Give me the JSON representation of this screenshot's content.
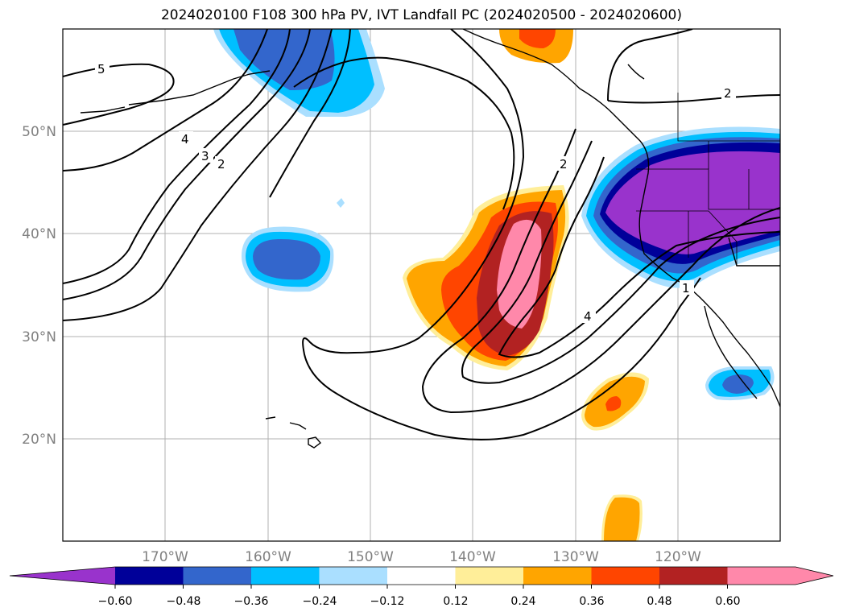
{
  "title": "2024020100 F108 300 hPa PV, IVT Landfall PC (2024020500 - 2024020600)",
  "map": {
    "lon_labels": [
      "170°W",
      "160°W",
      "150°W",
      "140°W",
      "130°W",
      "120°W"
    ],
    "lat_labels": [
      "50°N",
      "40°N",
      "30°N",
      "20°N"
    ],
    "grid_color": "#b0b0b0",
    "contour_labels": [
      "5",
      "4",
      "3",
      "2",
      "2",
      "2",
      "4",
      "1"
    ]
  },
  "colorbar": {
    "colors": [
      "#9933cc",
      "#000099",
      "#3366cc",
      "#00bfff",
      "#aadfff",
      "#ffffff",
      "#ffee99",
      "#ffa500",
      "#ff4500",
      "#b22222",
      "#ff88aa",
      "#ff88aa"
    ],
    "tick_labels": [
      "−0.60",
      "−0.48",
      "−0.36",
      "−0.24",
      "−0.12",
      "0.12",
      "0.24",
      "0.36",
      "0.48",
      "0.60"
    ]
  }
}
